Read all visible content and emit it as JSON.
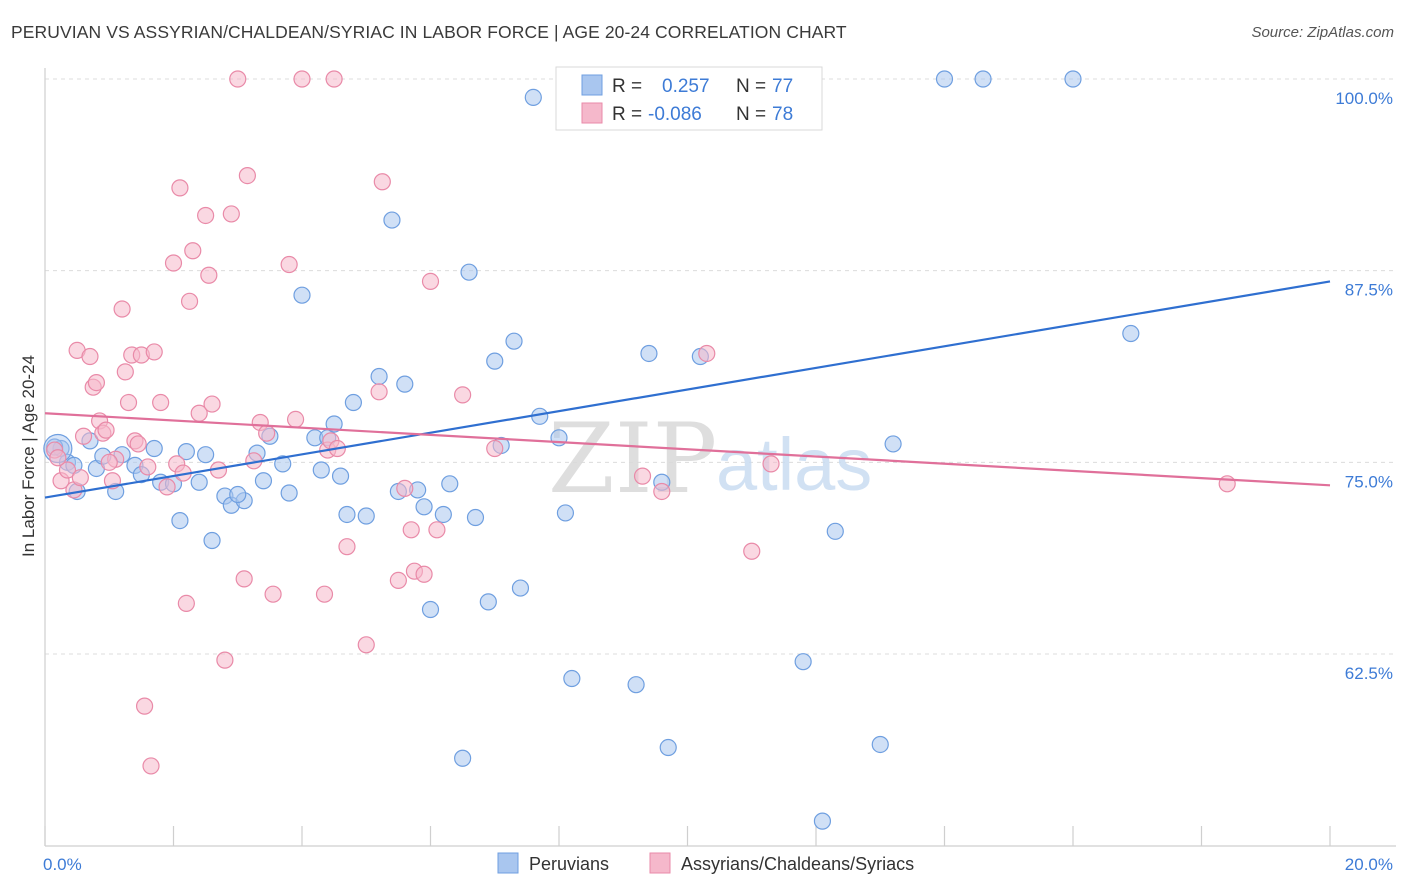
{
  "header": {
    "title": "PERUVIAN VS ASSYRIAN/CHALDEAN/SYRIAC IN LABOR FORCE | AGE 20-24 CORRELATION CHART",
    "source": "Source: ZipAtlas.com"
  },
  "watermark": {
    "zip": "ZIP",
    "atlas": "atlas"
  },
  "legend_top": [
    {
      "r_label": "R =",
      "r_value": "0.257",
      "n_label": "N =",
      "n_value": "77",
      "color": "#a9c6ef"
    },
    {
      "r_label": "R =",
      "r_value": "-0.086",
      "n_label": "N =",
      "n_value": "78",
      "color": "#f5b8cb"
    }
  ],
  "legend_bottom": [
    {
      "label": "Peruvians",
      "color": "#a9c6ef"
    },
    {
      "label": "Assyrians/Chaldeans/Syriacs",
      "color": "#f5b8cb"
    }
  ],
  "chart_data": {
    "type": "scatter",
    "title": "PERUVIAN VS ASSYRIAN/CHALDEAN/SYRIAC IN LABOR FORCE | AGE 20-24 CORRELATION CHART",
    "xlabel": "",
    "ylabel": "In Labor Force | Age 20-24",
    "xlim": [
      0,
      20
    ],
    "ylim": [
      51,
      101
    ],
    "x_tick_labels": [
      {
        "value": 0,
        "label": "0.0%"
      },
      {
        "value": 20,
        "label": "20.0%"
      }
    ],
    "y_tick_labels": [
      {
        "value": 100,
        "label": "100.0%"
      },
      {
        "value": 87.5,
        "label": "87.5%"
      },
      {
        "value": 75,
        "label": "75.0%"
      },
      {
        "value": 62.5,
        "label": "62.5%"
      }
    ],
    "x_minor_ticks": [
      0,
      2,
      4,
      6,
      8,
      10,
      12,
      14,
      16,
      18,
      20
    ],
    "grid": true,
    "legend_position": "top-center",
    "series": [
      {
        "name": "Peruvians",
        "color": "#a9c6ef",
        "stroke": "#6f9fe0",
        "line_color": "#2f6fd0",
        "trend": {
          "x": [
            0,
            20
          ],
          "y": [
            72.7,
            86.8
          ]
        },
        "points": [
          [
            0.25,
            75.9
          ],
          [
            0.35,
            75.0
          ],
          [
            0.5,
            73.1
          ],
          [
            0.7,
            76.4
          ],
          [
            0.8,
            74.6
          ],
          [
            0.9,
            75.4
          ],
          [
            1.1,
            73.1
          ],
          [
            1.2,
            75.5
          ],
          [
            1.4,
            74.8
          ],
          [
            1.5,
            74.2
          ],
          [
            1.7,
            75.9
          ],
          [
            1.8,
            73.7
          ],
          [
            2.0,
            73.6
          ],
          [
            2.1,
            71.2
          ],
          [
            2.2,
            75.7
          ],
          [
            2.4,
            73.7
          ],
          [
            2.5,
            75.5
          ],
          [
            2.6,
            69.9
          ],
          [
            2.8,
            72.8
          ],
          [
            2.9,
            72.2
          ],
          [
            3.1,
            72.5
          ],
          [
            3.3,
            75.6
          ],
          [
            3.4,
            73.8
          ],
          [
            3.5,
            76.7
          ],
          [
            3.7,
            74.9
          ],
          [
            3.8,
            73.0
          ],
          [
            4.0,
            85.9
          ],
          [
            4.2,
            76.6
          ],
          [
            4.3,
            74.5
          ],
          [
            4.4,
            76.6
          ],
          [
            4.5,
            77.5
          ],
          [
            4.6,
            74.1
          ],
          [
            4.7,
            71.6
          ],
          [
            4.8,
            78.9
          ],
          [
            5.0,
            71.5
          ],
          [
            5.2,
            80.6
          ],
          [
            5.4,
            90.8
          ],
          [
            5.5,
            73.1
          ],
          [
            5.6,
            80.1
          ],
          [
            5.8,
            73.2
          ],
          [
            5.9,
            72.1
          ],
          [
            6.0,
            65.4
          ],
          [
            6.2,
            71.6
          ],
          [
            6.3,
            73.6
          ],
          [
            6.5,
            55.7
          ],
          [
            6.6,
            87.4
          ],
          [
            6.7,
            71.4
          ],
          [
            6.9,
            65.9
          ],
          [
            7.0,
            81.6
          ],
          [
            7.1,
            76.1
          ],
          [
            7.3,
            82.9
          ],
          [
            7.4,
            66.8
          ],
          [
            7.6,
            98.8
          ],
          [
            7.7,
            78.0
          ],
          [
            8.0,
            76.6
          ],
          [
            8.1,
            71.7
          ],
          [
            8.2,
            60.9
          ],
          [
            8.5,
            100.0
          ],
          [
            9.0,
            100.0
          ],
          [
            9.2,
            60.5
          ],
          [
            9.4,
            82.1
          ],
          [
            9.6,
            73.7
          ],
          [
            9.7,
            56.4
          ],
          [
            10.2,
            81.9
          ],
          [
            11.5,
            100.0
          ],
          [
            11.8,
            62.0
          ],
          [
            12.1,
            51.6
          ],
          [
            12.3,
            70.5
          ],
          [
            13.0,
            56.6
          ],
          [
            13.2,
            76.2
          ],
          [
            14.0,
            100.0
          ],
          [
            14.6,
            100.0
          ],
          [
            16.0,
            100.0
          ],
          [
            16.9,
            83.4
          ],
          [
            0.15,
            76.0
          ],
          [
            0.45,
            74.8
          ],
          [
            3.0,
            72.9
          ]
        ]
      },
      {
        "name": "Assyrians/Chaldeans/Syriacs",
        "color": "#f5b8cb",
        "stroke": "#e98aa8",
        "line_color": "#e0709a",
        "trend": {
          "x": [
            0,
            20
          ],
          "y": [
            78.2,
            73.5
          ]
        },
        "points": [
          [
            0.15,
            75.8
          ],
          [
            0.25,
            73.8
          ],
          [
            0.35,
            74.5
          ],
          [
            0.45,
            73.2
          ],
          [
            0.5,
            82.3
          ],
          [
            0.6,
            76.7
          ],
          [
            0.7,
            81.9
          ],
          [
            0.75,
            79.9
          ],
          [
            0.8,
            80.2
          ],
          [
            0.85,
            77.7
          ],
          [
            0.9,
            76.9
          ],
          [
            0.95,
            77.1
          ],
          [
            1.05,
            73.8
          ],
          [
            1.1,
            75.2
          ],
          [
            1.2,
            85.0
          ],
          [
            1.25,
            80.9
          ],
          [
            1.3,
            78.9
          ],
          [
            1.35,
            82.0
          ],
          [
            1.4,
            76.4
          ],
          [
            1.5,
            82.0
          ],
          [
            1.55,
            59.1
          ],
          [
            1.6,
            74.7
          ],
          [
            1.65,
            55.2
          ],
          [
            1.7,
            82.2
          ],
          [
            1.8,
            78.9
          ],
          [
            1.9,
            73.4
          ],
          [
            2.0,
            88.0
          ],
          [
            2.05,
            74.9
          ],
          [
            2.1,
            92.9
          ],
          [
            2.2,
            65.8
          ],
          [
            2.25,
            85.5
          ],
          [
            2.3,
            88.8
          ],
          [
            2.4,
            78.2
          ],
          [
            2.5,
            91.1
          ],
          [
            2.55,
            87.2
          ],
          [
            2.6,
            78.8
          ],
          [
            2.7,
            74.5
          ],
          [
            2.8,
            62.1
          ],
          [
            2.9,
            91.2
          ],
          [
            3.0,
            100.0
          ],
          [
            3.1,
            67.4
          ],
          [
            3.15,
            93.7
          ],
          [
            3.35,
            77.6
          ],
          [
            3.45,
            76.9
          ],
          [
            3.55,
            66.4
          ],
          [
            3.8,
            87.9
          ],
          [
            3.9,
            77.8
          ],
          [
            4.0,
            100.0
          ],
          [
            4.5,
            100.0
          ],
          [
            4.35,
            66.4
          ],
          [
            4.4,
            75.8
          ],
          [
            4.45,
            76.4
          ],
          [
            4.7,
            69.5
          ],
          [
            5.0,
            63.1
          ],
          [
            5.2,
            79.6
          ],
          [
            5.25,
            93.3
          ],
          [
            5.5,
            67.3
          ],
          [
            5.6,
            73.3
          ],
          [
            5.7,
            70.6
          ],
          [
            5.75,
            67.9
          ],
          [
            5.9,
            67.7
          ],
          [
            6.0,
            86.8
          ],
          [
            6.1,
            70.6
          ],
          [
            6.5,
            79.4
          ],
          [
            7.0,
            75.9
          ],
          [
            9.3,
            74.1
          ],
          [
            9.6,
            73.1
          ],
          [
            10.3,
            82.1
          ],
          [
            11.0,
            69.2
          ],
          [
            11.3,
            74.9
          ],
          [
            18.4,
            73.6
          ],
          [
            0.2,
            75.3
          ],
          [
            0.55,
            74.0
          ],
          [
            1.0,
            75.0
          ],
          [
            1.45,
            76.2
          ],
          [
            2.15,
            74.3
          ],
          [
            3.25,
            75.1
          ],
          [
            4.55,
            75.9
          ]
        ]
      }
    ]
  }
}
